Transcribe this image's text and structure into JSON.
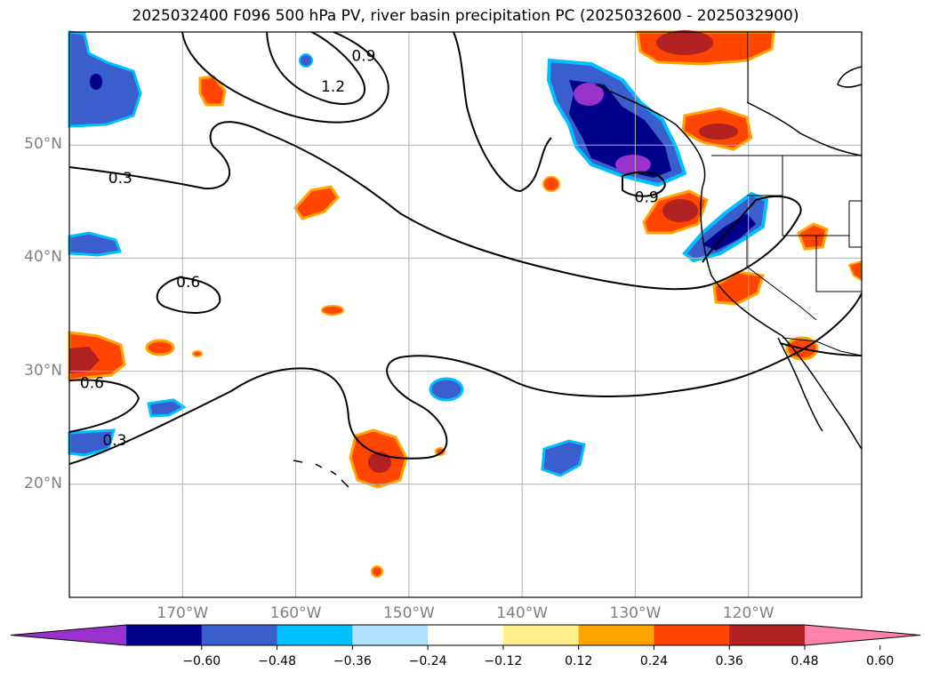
{
  "title": "2025032400 F096 500 hPa PV, river basin precipitation PC (2025032600 - 2025032900)",
  "axes": {
    "lat_labels": [
      "50°N",
      "40°N",
      "30°N",
      "20°N"
    ],
    "lat_values": [
      50,
      40,
      30,
      20
    ],
    "lon_labels": [
      "170°W",
      "160°W",
      "150°W",
      "140°W",
      "130°W",
      "120°W"
    ],
    "lon_values": [
      -170,
      -160,
      -150,
      -140,
      -130,
      -120
    ],
    "lon_range": [
      -180,
      -110
    ],
    "lat_range": [
      10,
      60
    ]
  },
  "pv_contour_labels": [
    {
      "text": "0.3",
      "lon": -175.5,
      "lat": 47.1
    },
    {
      "text": "0.6",
      "lon": -169.5,
      "lat": 37.9
    },
    {
      "text": "0.6",
      "lon": -178,
      "lat": 29.0
    },
    {
      "text": "0.3",
      "lon": -176,
      "lat": 23.9
    },
    {
      "text": "0.9",
      "lon": -129,
      "lat": 45.4
    },
    {
      "text": "1.2",
      "lon": -156.7,
      "lat": 55.2
    },
    {
      "text": "0.9",
      "lon": -154,
      "lat": 57.9
    }
  ],
  "colorbar": {
    "colors": [
      "#9932cc",
      "#00008b",
      "#3a5fcd",
      "#00bfff",
      "#b0e2ff",
      "#ffffff",
      "#ffec8b",
      "#ffa500",
      "#ff4500",
      "#b22222",
      "#ff82ab"
    ],
    "tick_labels": [
      "−0.60",
      "−0.48",
      "−0.36",
      "−0.24",
      "−0.12",
      "0.12",
      "0.24",
      "0.36",
      "0.48",
      "0.60"
    ]
  },
  "precip_pc_regions": [
    {
      "sign": "negative",
      "level": -0.48,
      "lon": -176,
      "lat": 56
    },
    {
      "sign": "negative",
      "level": -0.36,
      "lon": -178,
      "lat": 41
    },
    {
      "sign": "negative",
      "level": -0.36,
      "lon": -178,
      "lat": 24
    },
    {
      "sign": "negative",
      "level": -0.36,
      "lon": -172,
      "lat": 27
    },
    {
      "sign": "negative",
      "level": -0.36,
      "lon": -146,
      "lat": 28
    },
    {
      "sign": "negative",
      "level": -0.36,
      "lon": -136,
      "lat": 22
    },
    {
      "sign": "negative",
      "level": -0.6,
      "lon": -132,
      "lat": 51
    },
    {
      "sign": "negative",
      "level": -0.48,
      "lon": -123,
      "lat": 42
    },
    {
      "sign": "negative",
      "level": -0.24,
      "lon": -161,
      "lat": 57
    },
    {
      "sign": "positive",
      "level": 0.36,
      "lon": -178,
      "lat": 31
    },
    {
      "sign": "positive",
      "level": 0.48,
      "lon": -152,
      "lat": 22
    },
    {
      "sign": "positive",
      "level": 0.36,
      "lon": -168,
      "lat": 55
    },
    {
      "sign": "positive",
      "level": 0.36,
      "lon": -159,
      "lat": 45
    },
    {
      "sign": "positive",
      "level": 0.36,
      "lon": -126,
      "lat": 58
    },
    {
      "sign": "positive",
      "level": 0.48,
      "lon": -126,
      "lat": 44
    },
    {
      "sign": "positive",
      "level": 0.48,
      "lon": -124,
      "lat": 50
    },
    {
      "sign": "positive",
      "level": 0.36,
      "lon": -121,
      "lat": 37
    },
    {
      "sign": "positive",
      "level": 0.36,
      "lon": -115,
      "lat": 32
    },
    {
      "sign": "positive",
      "level": 0.36,
      "lon": -112,
      "lat": 42
    },
    {
      "sign": "positive",
      "level": 0.36,
      "lon": -172,
      "lat": 32
    },
    {
      "sign": "positive",
      "level": 0.24,
      "lon": -154,
      "lat": 35
    },
    {
      "sign": "positive",
      "level": 0.24,
      "lon": -137,
      "lat": 47
    }
  ]
}
